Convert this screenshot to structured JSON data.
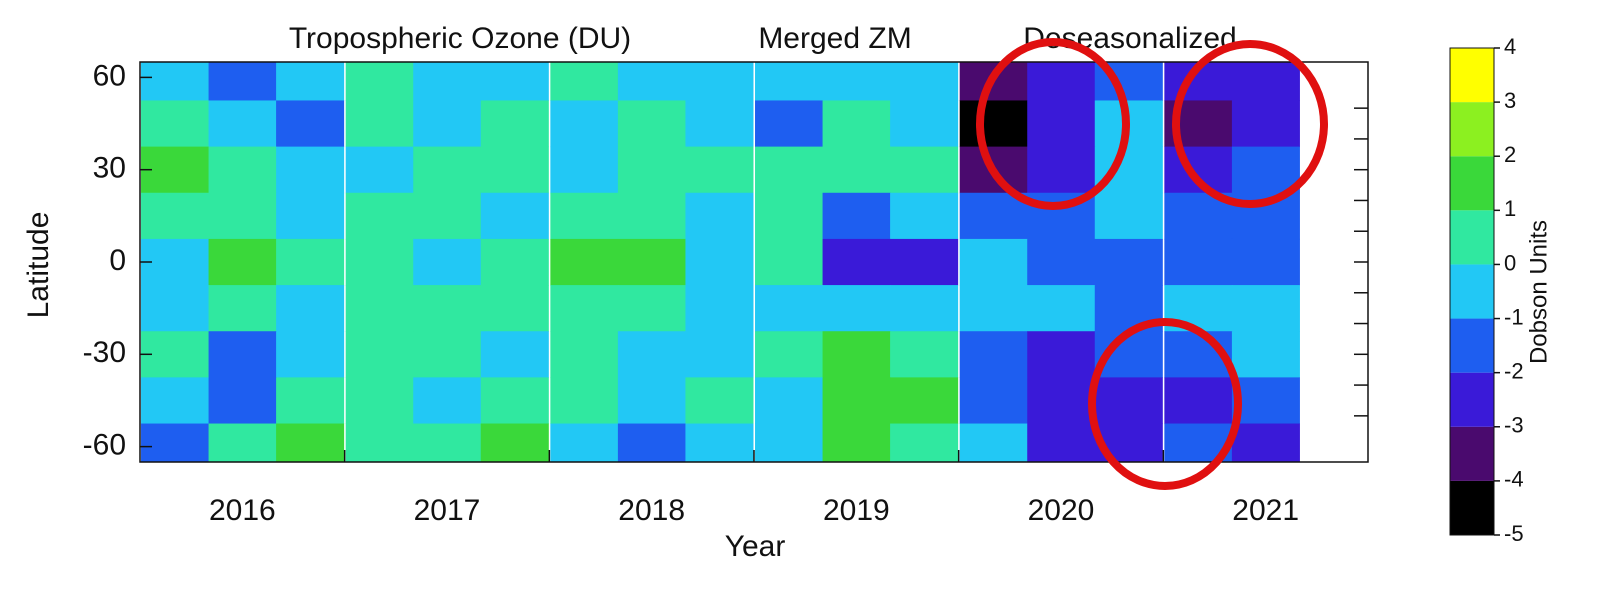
{
  "chart_data": {
    "type": "heatmap",
    "title_parts": [
      "Tropospheric Ozone (DU)",
      "Merged ZM",
      "Deseasonalized"
    ],
    "xlabel": "Year",
    "ylabel": "Latitude",
    "x": [
      2016.17,
      2016.5,
      2016.83,
      2017.17,
      2017.5,
      2017.83,
      2018.17,
      2018.5,
      2018.83,
      2019.17,
      2019.5,
      2019.83,
      2020.17,
      2020.5,
      2020.83,
      2021.17,
      2021.5
    ],
    "y": [
      60,
      45,
      30,
      15,
      0,
      -15,
      -30,
      -45,
      -60
    ],
    "z": [
      [
        -0.5,
        -1.5,
        -0.5,
        0.5,
        -0.5,
        -0.5,
        0.5,
        -0.5,
        -0.5,
        -0.5,
        -0.5,
        -0.5,
        -3.5,
        -2.5,
        -1.5,
        -2.5,
        -2.5
      ],
      [
        0.5,
        -0.5,
        -1.5,
        0.5,
        -0.5,
        0.5,
        -0.5,
        0.5,
        -0.5,
        -1.5,
        0.5,
        -0.5,
        -4.5,
        -2.5,
        -0.5,
        -3.5,
        -2.5
      ],
      [
        1.5,
        0.5,
        -0.5,
        -0.5,
        0.5,
        0.5,
        -0.5,
        0.5,
        0.5,
        0.5,
        0.5,
        0.5,
        -3.5,
        -2.5,
        -0.5,
        -2.5,
        -1.5
      ],
      [
        0.5,
        0.5,
        -0.5,
        0.5,
        0.5,
        -0.5,
        0.5,
        0.5,
        -0.5,
        0.5,
        -1.5,
        -0.5,
        -1.5,
        -1.5,
        -0.5,
        -1.5,
        -1.5
      ],
      [
        -0.5,
        1.5,
        0.5,
        0.5,
        -0.5,
        0.5,
        1.5,
        1.5,
        -0.5,
        0.5,
        -2.5,
        -2.5,
        -0.5,
        -1.5,
        -1.5,
        -1.5,
        -1.5
      ],
      [
        -0.5,
        0.5,
        -0.5,
        0.5,
        0.5,
        0.5,
        0.5,
        0.5,
        -0.5,
        -0.5,
        -0.5,
        -0.5,
        -0.5,
        -0.5,
        -1.5,
        -0.5,
        -0.5
      ],
      [
        0.5,
        -1.5,
        -0.5,
        0.5,
        0.5,
        -0.5,
        0.5,
        -0.5,
        -0.5,
        0.5,
        1.5,
        0.5,
        -1.5,
        -2.5,
        -1.5,
        -1.5,
        -0.5
      ],
      [
        -0.5,
        -1.5,
        0.5,
        0.5,
        -0.5,
        0.5,
        0.5,
        -0.5,
        0.5,
        -0.5,
        1.5,
        1.5,
        -1.5,
        -2.5,
        -2.5,
        -2.5,
        -1.5
      ],
      [
        -1.5,
        0.5,
        1.5,
        0.5,
        0.5,
        1.5,
        -0.5,
        -1.5,
        -0.5,
        -0.5,
        1.5,
        0.5,
        -0.5,
        -2.5,
        -2.5,
        -1.5,
        -2.5
      ]
    ],
    "xlim": [
      2016,
      2022
    ],
    "xticks": [
      {
        "value": 2016.5,
        "label": "2016"
      },
      {
        "value": 2017.5,
        "label": "2017"
      },
      {
        "value": 2018.5,
        "label": "2018"
      },
      {
        "value": 2019.5,
        "label": "2019"
      },
      {
        "value": 2020.5,
        "label": "2020"
      },
      {
        "value": 2021.5,
        "label": "2021"
      }
    ],
    "xminorticks": [
      2017,
      2018,
      2019,
      2020,
      2021
    ],
    "ylim": [
      -65,
      65
    ],
    "yticks": [
      -60,
      -30,
      0,
      30,
      60
    ],
    "yminorticks": [
      -50,
      -40,
      -30,
      -20,
      -10,
      0,
      10,
      20,
      30,
      40,
      50
    ],
    "colorbar": {
      "label": "Dobson Units",
      "ticks": [
        -5,
        -4,
        -3,
        -2,
        -1,
        0,
        1,
        2,
        3,
        4
      ],
      "colors": [
        "#000000",
        "#4a0a6e",
        "#3a1ad8",
        "#1e5ef0",
        "#22c8f5",
        "#30e8a0",
        "#3ad83a",
        "#8cf020",
        "#ffff00"
      ]
    }
  }
}
